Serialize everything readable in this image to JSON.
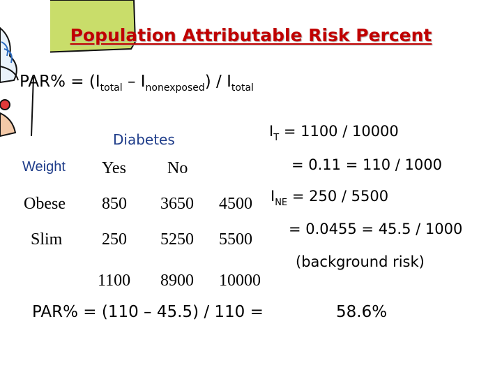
{
  "title": "Population Attributable Risk Percent",
  "formula": {
    "lead": "PAR% = (I",
    "sub1": "total",
    "mid": " – I",
    "sub2": "nonexposed",
    "tail": ")  / I",
    "sub3": "total"
  },
  "table": {
    "group_header": "Diabetes",
    "row_header": "Weight",
    "col_yes": "Yes",
    "col_no": "No",
    "rows": [
      {
        "label": "Obese",
        "yes": "850",
        "no": "3650",
        "total": "4500"
      },
      {
        "label": "Slim",
        "yes": "250",
        "no": "5250",
        "total": "5500"
      }
    ],
    "totals": {
      "yes": "1100",
      "no": "8900",
      "total": "10000"
    }
  },
  "calculations": {
    "it_prefix": "I",
    "it_sub": "T",
    "it_expr": " = 1100 / 10000",
    "it_result": "= 0.11 = 110 / 1000",
    "ine_prefix": "I",
    "ine_sub": "NE",
    "ine_expr": " = 250 / 5500",
    "ine_result": "= 0.0455 = 45.5 / 1000",
    "note": "(background risk)"
  },
  "bottom": {
    "formula": "PAR% = (110 – 45.5) / 110  =",
    "result": "58.6%"
  },
  "colors": {
    "title": "#c00000",
    "table_headers": "#1f3d8a",
    "clipart_green": "#c9dd6a"
  },
  "icons": [
    "cartoon-clipart"
  ]
}
